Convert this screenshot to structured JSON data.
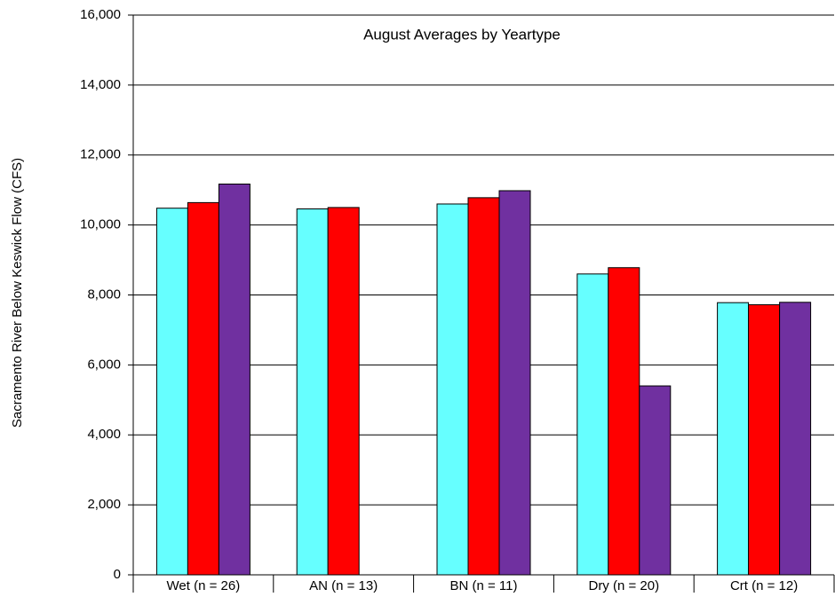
{
  "chart_data": {
    "type": "bar",
    "title": "August Averages by Yeartype",
    "y_label": "Sacramento River Below Keswick Flow (CFS)",
    "categories": [
      "Wet (n = 26)",
      "AN  (n = 13)",
      "BN  (n = 11)",
      "Dry (n = 20)",
      "Crt (n = 12)"
    ],
    "series": [
      {
        "color": "#66ffff",
        "values": [
          10480,
          10460,
          10600,
          8600,
          7780
        ]
      },
      {
        "color": "#ff0000",
        "values": [
          10640,
          10500,
          10780,
          8780,
          7720
        ]
      },
      {
        "color": "#7030a0",
        "values": [
          11170,
          null,
          10980,
          5400,
          7790
        ]
      }
    ],
    "ylim": [
      0,
      16000
    ],
    "yticks": [
      0,
      {
        "value": 2000,
        "label": "2,000"
      },
      {
        "value": 4000,
        "label": "4,000"
      },
      {
        "value": 6000,
        "label": "6,000"
      },
      {
        "value": 8000,
        "label": "8,000"
      },
      {
        "value": 10000,
        "label": "10,000"
      },
      {
        "value": 12000,
        "label": "12,000"
      },
      {
        "value": 14000,
        "label": "14,000"
      },
      {
        "value": 16000,
        "label": "16,000"
      }
    ],
    "grid": true
  }
}
